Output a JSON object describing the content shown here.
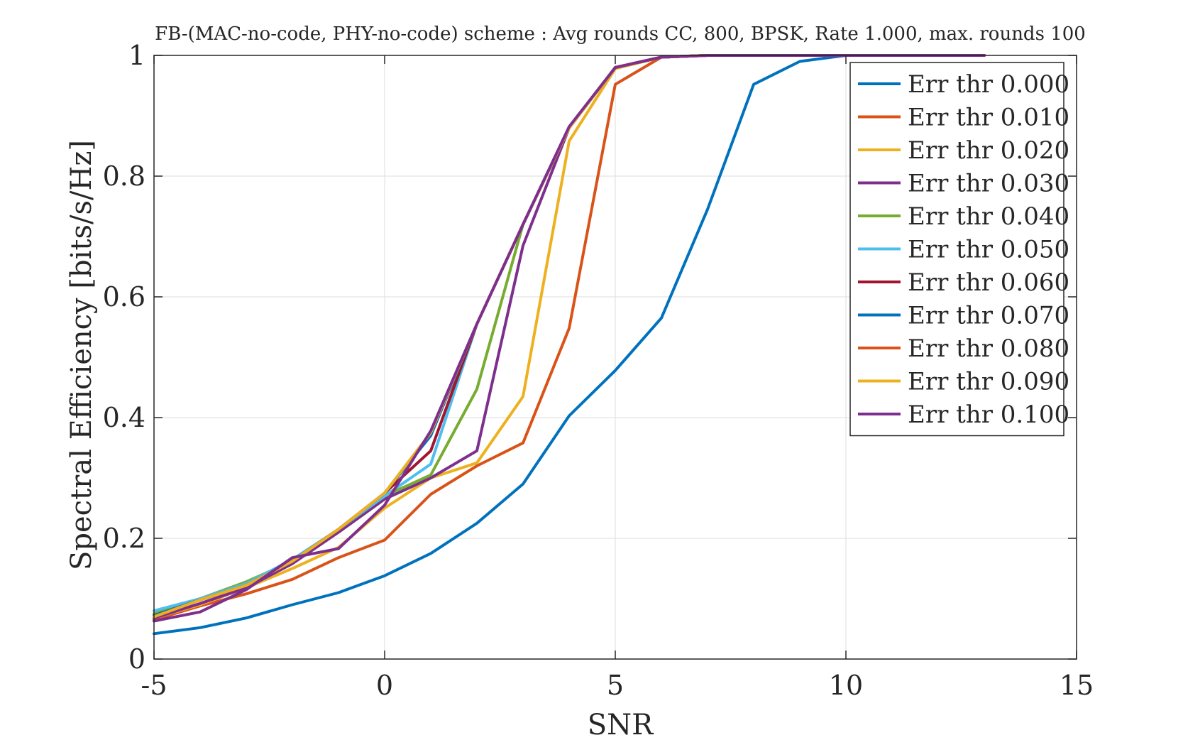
{
  "chart_data": {
    "type": "line",
    "title": "FB-(MAC-no-code, PHY-no-code) scheme : Avg rounds CC, 800, BPSK, Rate 1.000, max. rounds 100",
    "xlabel": "SNR",
    "ylabel": "Spectral Efficiency [bits/s/Hz]",
    "xlim": [
      -5,
      15
    ],
    "ylim": [
      0,
      1
    ],
    "xticks": [
      -5,
      0,
      5,
      10,
      15
    ],
    "xtick_labels": [
      "-5",
      "0",
      "5",
      "10",
      "15"
    ],
    "yticks": [
      0,
      0.2,
      0.4,
      0.6,
      0.8,
      1
    ],
    "ytick_labels": [
      "0",
      "0.2",
      "0.4",
      "0.6",
      "0.8",
      "1"
    ],
    "grid": true,
    "legend_position": "top-right",
    "x": [
      -5,
      -4,
      -3,
      -2,
      -1,
      0,
      1,
      2,
      3,
      4,
      5,
      6,
      7,
      8,
      9,
      10,
      11,
      12,
      13
    ],
    "series": [
      {
        "name": "Err thr 0.000",
        "color": "#0072BD",
        "values": [
          0.042,
          0.052,
          0.068,
          0.09,
          0.11,
          0.138,
          0.175,
          0.225,
          0.29,
          0.403,
          0.478,
          0.565,
          0.745,
          0.952,
          0.99,
          1.0,
          1.0,
          1.0,
          1.0
        ]
      },
      {
        "name": "Err thr 0.010",
        "color": "#D95319",
        "values": [
          0.065,
          0.088,
          0.108,
          0.132,
          0.168,
          0.197,
          0.273,
          0.32,
          0.358,
          0.548,
          0.952,
          0.997,
          1.0,
          1.0,
          1.0,
          1.0,
          1.0,
          1.0,
          1.0
        ]
      },
      {
        "name": "Err thr 0.020",
        "color": "#EDB120",
        "values": [
          0.068,
          0.09,
          0.118,
          0.15,
          0.185,
          0.25,
          0.3,
          0.325,
          0.435,
          0.858,
          0.978,
          0.997,
          1.0,
          1.0,
          1.0,
          1.0,
          1.0,
          1.0,
          1.0
        ]
      },
      {
        "name": "Err thr 0.030",
        "color": "#7E2F8E",
        "values": [
          0.068,
          0.092,
          0.118,
          0.158,
          0.21,
          0.265,
          0.3,
          0.345,
          0.685,
          0.88,
          0.98,
          0.997,
          1.0,
          1.0,
          1.0,
          1.0,
          1.0,
          1.0,
          1.0
        ]
      },
      {
        "name": "Err thr 0.040",
        "color": "#77AC30",
        "values": [
          0.075,
          0.1,
          0.128,
          0.162,
          0.215,
          0.27,
          0.305,
          0.447,
          0.72,
          0.88,
          0.98,
          0.997,
          1.0,
          1.0,
          1.0,
          1.0,
          1.0,
          1.0,
          1.0
        ]
      },
      {
        "name": "Err thr 0.050",
        "color": "#4DBEEE",
        "values": [
          0.08,
          0.1,
          0.125,
          0.165,
          0.215,
          0.27,
          0.323,
          0.555,
          0.72,
          0.88,
          0.98,
          0.997,
          1.0,
          1.0,
          1.0,
          1.0,
          1.0,
          1.0,
          1.0
        ]
      },
      {
        "name": "Err thr 0.060",
        "color": "#A2142F",
        "values": [
          0.072,
          0.098,
          0.122,
          0.162,
          0.215,
          0.275,
          0.345,
          0.555,
          0.72,
          0.88,
          0.98,
          0.997,
          1.0,
          1.0,
          1.0,
          1.0,
          1.0,
          1.0,
          1.0
        ]
      },
      {
        "name": "Err thr 0.070",
        "color": "#0072BD",
        "values": [
          0.072,
          0.098,
          0.122,
          0.162,
          0.215,
          0.275,
          0.37,
          0.555,
          0.72,
          0.88,
          0.98,
          0.997,
          1.0,
          1.0,
          1.0,
          1.0,
          1.0,
          1.0,
          1.0
        ]
      },
      {
        "name": "Err thr 0.080",
        "color": "#D95319",
        "values": [
          0.07,
          0.098,
          0.122,
          0.162,
          0.215,
          0.275,
          0.375,
          0.555,
          0.72,
          0.88,
          0.98,
          0.997,
          1.0,
          1.0,
          1.0,
          1.0,
          1.0,
          1.0,
          1.0
        ]
      },
      {
        "name": "Err thr 0.090",
        "color": "#EDB120",
        "values": [
          0.07,
          0.098,
          0.122,
          0.162,
          0.215,
          0.275,
          0.375,
          0.555,
          0.72,
          0.88,
          0.98,
          0.997,
          1.0,
          1.0,
          1.0,
          1.0,
          1.0,
          1.0,
          1.0
        ]
      },
      {
        "name": "Err thr 0.100",
        "color": "#7E2F8E",
        "values": [
          0.063,
          0.078,
          0.115,
          0.168,
          0.183,
          0.255,
          0.378,
          0.555,
          0.72,
          0.882,
          0.98,
          0.997,
          1.0,
          1.0,
          1.0,
          1.0,
          1.0,
          1.0,
          1.0
        ]
      }
    ]
  }
}
